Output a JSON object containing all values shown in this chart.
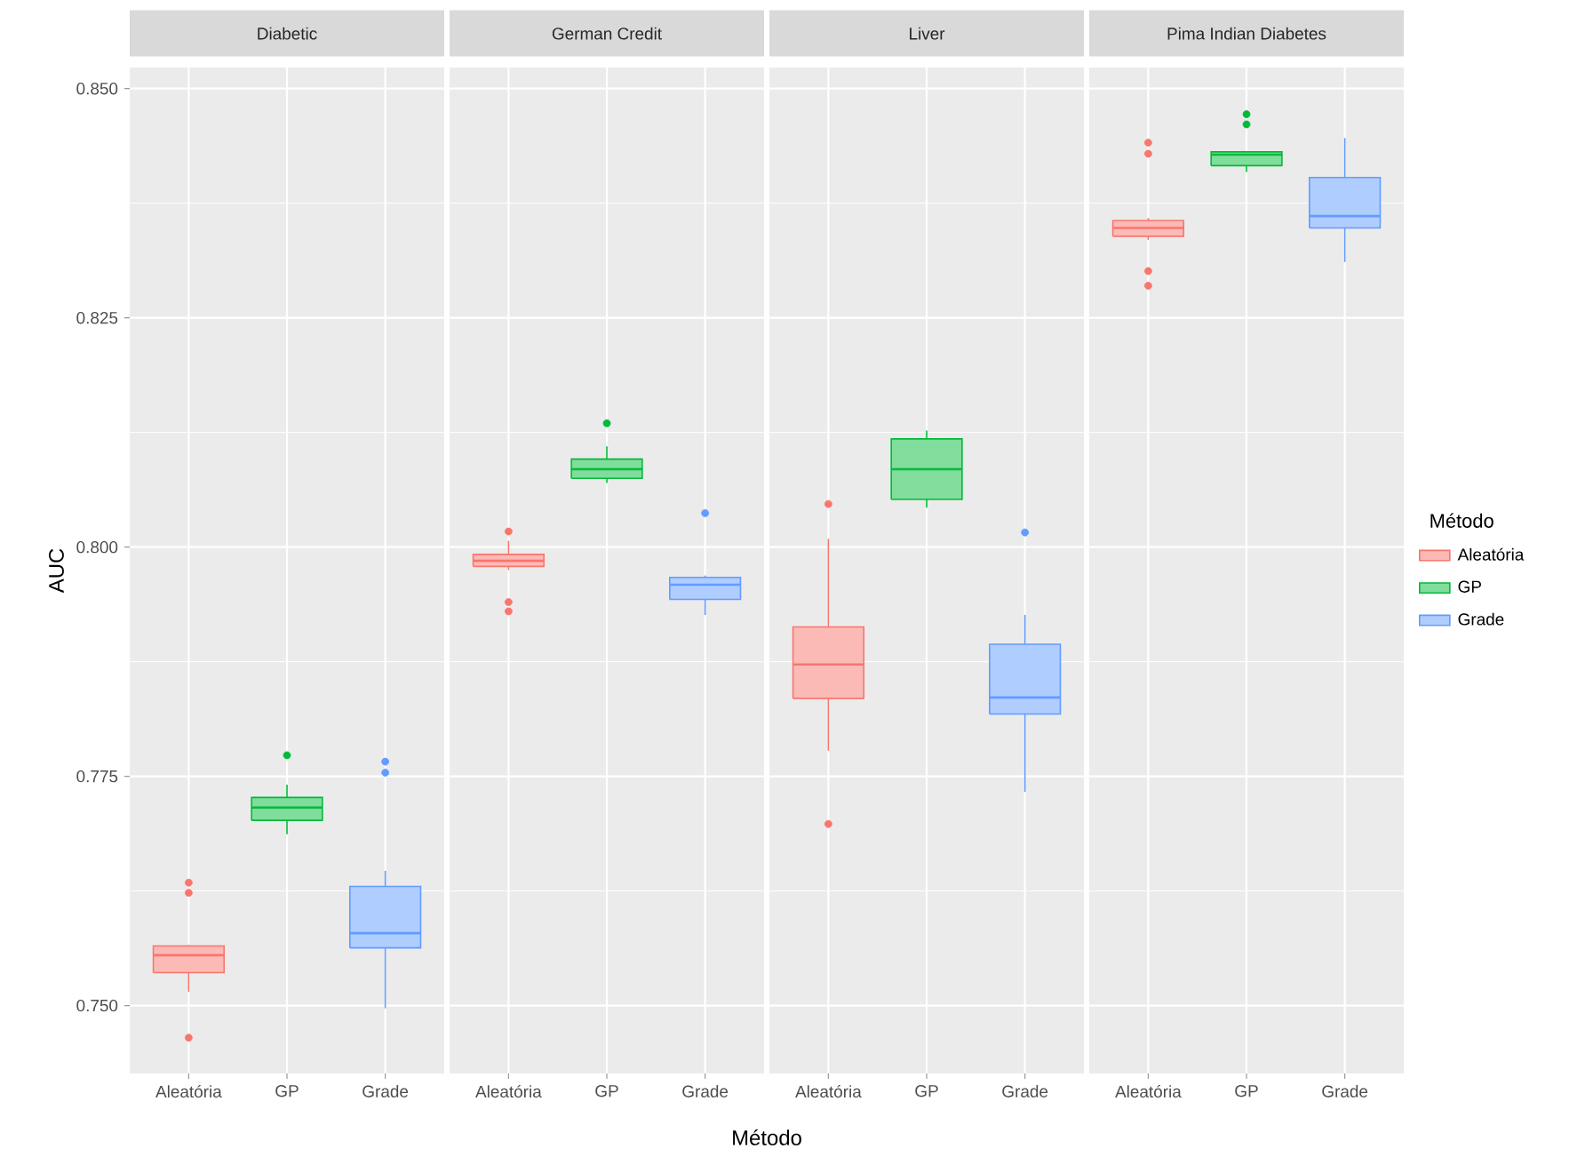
{
  "chart_data": [
    {
      "type": "box",
      "title": "Diabetic",
      "ylabel": "AUC",
      "categories": [
        "Aleatória",
        "GP",
        "Grade"
      ],
      "ylim": [
        0.7426,
        0.8523
      ],
      "yticks": [
        {
          "value": 0.75,
          "label": "0.750"
        },
        {
          "value": 0.775,
          "label": "0.775"
        },
        {
          "value": 0.8,
          "label": "0.800"
        },
        {
          "value": 0.825,
          "label": "0.825"
        },
        {
          "value": 0.85,
          "label": "0.850"
        }
      ],
      "grid": true,
      "series": [
        {
          "color": "#f8766d",
          "boxes": [
            {
              "low": 0.7515,
              "q1": 0.7536,
              "median": 0.7555,
              "q3": 0.7565,
              "high": 0.7566,
              "outliers": [
                0.7634,
                0.7623,
                0.7465
              ]
            },
            null,
            null
          ]
        },
        {
          "color": "#00ba38",
          "boxes": [
            null,
            {
              "low": 0.7687,
              "q1": 0.7702,
              "median": 0.7716,
              "q3": 0.7727,
              "high": 0.7741,
              "outliers": [
                0.7773
              ]
            },
            null
          ]
        },
        {
          "color": "#619cff",
          "boxes": [
            null,
            null,
            {
              "low": 0.7497,
              "q1": 0.7563,
              "median": 0.7579,
              "q3": 0.763,
              "high": 0.7647,
              "outliers": [
                0.7766,
                0.7754
              ]
            }
          ]
        }
      ]
    },
    {
      "type": "box",
      "title": "German Credit",
      "xlabel": "Método",
      "categories": [
        "Aleatória",
        "GP",
        "Grade"
      ],
      "ylim": [
        0.7426,
        0.8523
      ],
      "yticks": [
        {
          "value": 0.75,
          "label": null
        },
        {
          "value": 0.775,
          "label": null
        },
        {
          "value": 0.8,
          "label": null
        },
        {
          "value": 0.825,
          "label": null
        },
        {
          "value": 0.85,
          "label": null
        }
      ],
      "grid": true,
      "tick_labels": "x",
      "series": [
        {
          "color": "#f8766d",
          "boxes": [
            {
              "low": 0.7975,
              "q1": 0.7979,
              "median": 0.7985,
              "q3": 0.7992,
              "high": 0.8007,
              "outliers": [
                0.8017,
                0.794,
                0.793
              ]
            },
            null,
            null
          ]
        },
        {
          "color": "#00ba38",
          "boxes": [
            null,
            {
              "low": 0.807,
              "q1": 0.8075,
              "median": 0.8085,
              "q3": 0.8096,
              "high": 0.811,
              "outliers": [
                0.8135
              ]
            },
            null
          ]
        },
        {
          "color": "#619cff",
          "boxes": [
            null,
            null,
            {
              "low": 0.7926,
              "q1": 0.7943,
              "median": 0.7959,
              "q3": 0.7967,
              "high": 0.7969,
              "outliers": [
                0.8037
              ]
            }
          ]
        }
      ]
    },
    {
      "type": "box",
      "title": "Liver",
      "categories": [
        "Aleatória",
        "GP",
        "Grade"
      ],
      "ylim": [
        0.7426,
        0.8523
      ],
      "yticks": [
        {
          "value": 0.75,
          "label": null
        },
        {
          "value": 0.775,
          "label": null
        },
        {
          "value": 0.8,
          "label": null
        },
        {
          "value": 0.825,
          "label": null
        },
        {
          "value": 0.85,
          "label": null
        }
      ],
      "grid": true,
      "tick_labels": "x",
      "series": [
        {
          "color": "#f8766d",
          "boxes": [
            {
              "low": 0.7778,
              "q1": 0.7835,
              "median": 0.7872,
              "q3": 0.7913,
              "high": 0.8009,
              "outliers": [
                0.8047,
                0.7698
              ]
            },
            null,
            null
          ]
        },
        {
          "color": "#00ba38",
          "boxes": [
            null,
            {
              "low": 0.8043,
              "q1": 0.8052,
              "median": 0.8085,
              "q3": 0.8118,
              "high": 0.8127
            },
            null
          ]
        },
        {
          "color": "#619cff",
          "boxes": [
            null,
            null,
            {
              "low": 0.7733,
              "q1": 0.7818,
              "median": 0.7836,
              "q3": 0.7894,
              "high": 0.7926,
              "outliers": [
                0.8016
              ]
            }
          ]
        }
      ]
    },
    {
      "type": "box",
      "title": "Pima Indian Diabetes",
      "legend": "right",
      "legend_title": "Método",
      "categories": [
        "Aleatória",
        "GP",
        "Grade"
      ],
      "ylim": [
        0.7426,
        0.8523
      ],
      "yticks": [
        {
          "value": 0.75,
          "label": null
        },
        {
          "value": 0.775,
          "label": null
        },
        {
          "value": 0.8,
          "label": null
        },
        {
          "value": 0.825,
          "label": null
        },
        {
          "value": 0.85,
          "label": null
        }
      ],
      "grid": true,
      "tick_labels": "x",
      "series": [
        {
          "name": "Aleatória",
          "color": "#f8766d",
          "boxes": [
            {
              "low": 0.8335,
              "q1": 0.8339,
              "median": 0.8348,
              "q3": 0.8356,
              "high": 0.8359,
              "outliers": [
                0.8441,
                0.8429,
                0.8301,
                0.8285
              ]
            },
            null,
            null
          ]
        },
        {
          "name": "GP",
          "color": "#00ba38",
          "boxes": [
            null,
            {
              "low": 0.8409,
              "q1": 0.8416,
              "median": 0.8428,
              "q3": 0.8431,
              "high": 0.8431,
              "outliers": [
                0.8472,
                0.8461
              ]
            },
            null
          ]
        },
        {
          "name": "Grade",
          "color": "#619cff",
          "boxes": [
            null,
            null,
            {
              "low": 0.8311,
              "q1": 0.8348,
              "median": 0.8361,
              "q3": 0.8403,
              "high": 0.8446
            }
          ]
        }
      ]
    }
  ]
}
